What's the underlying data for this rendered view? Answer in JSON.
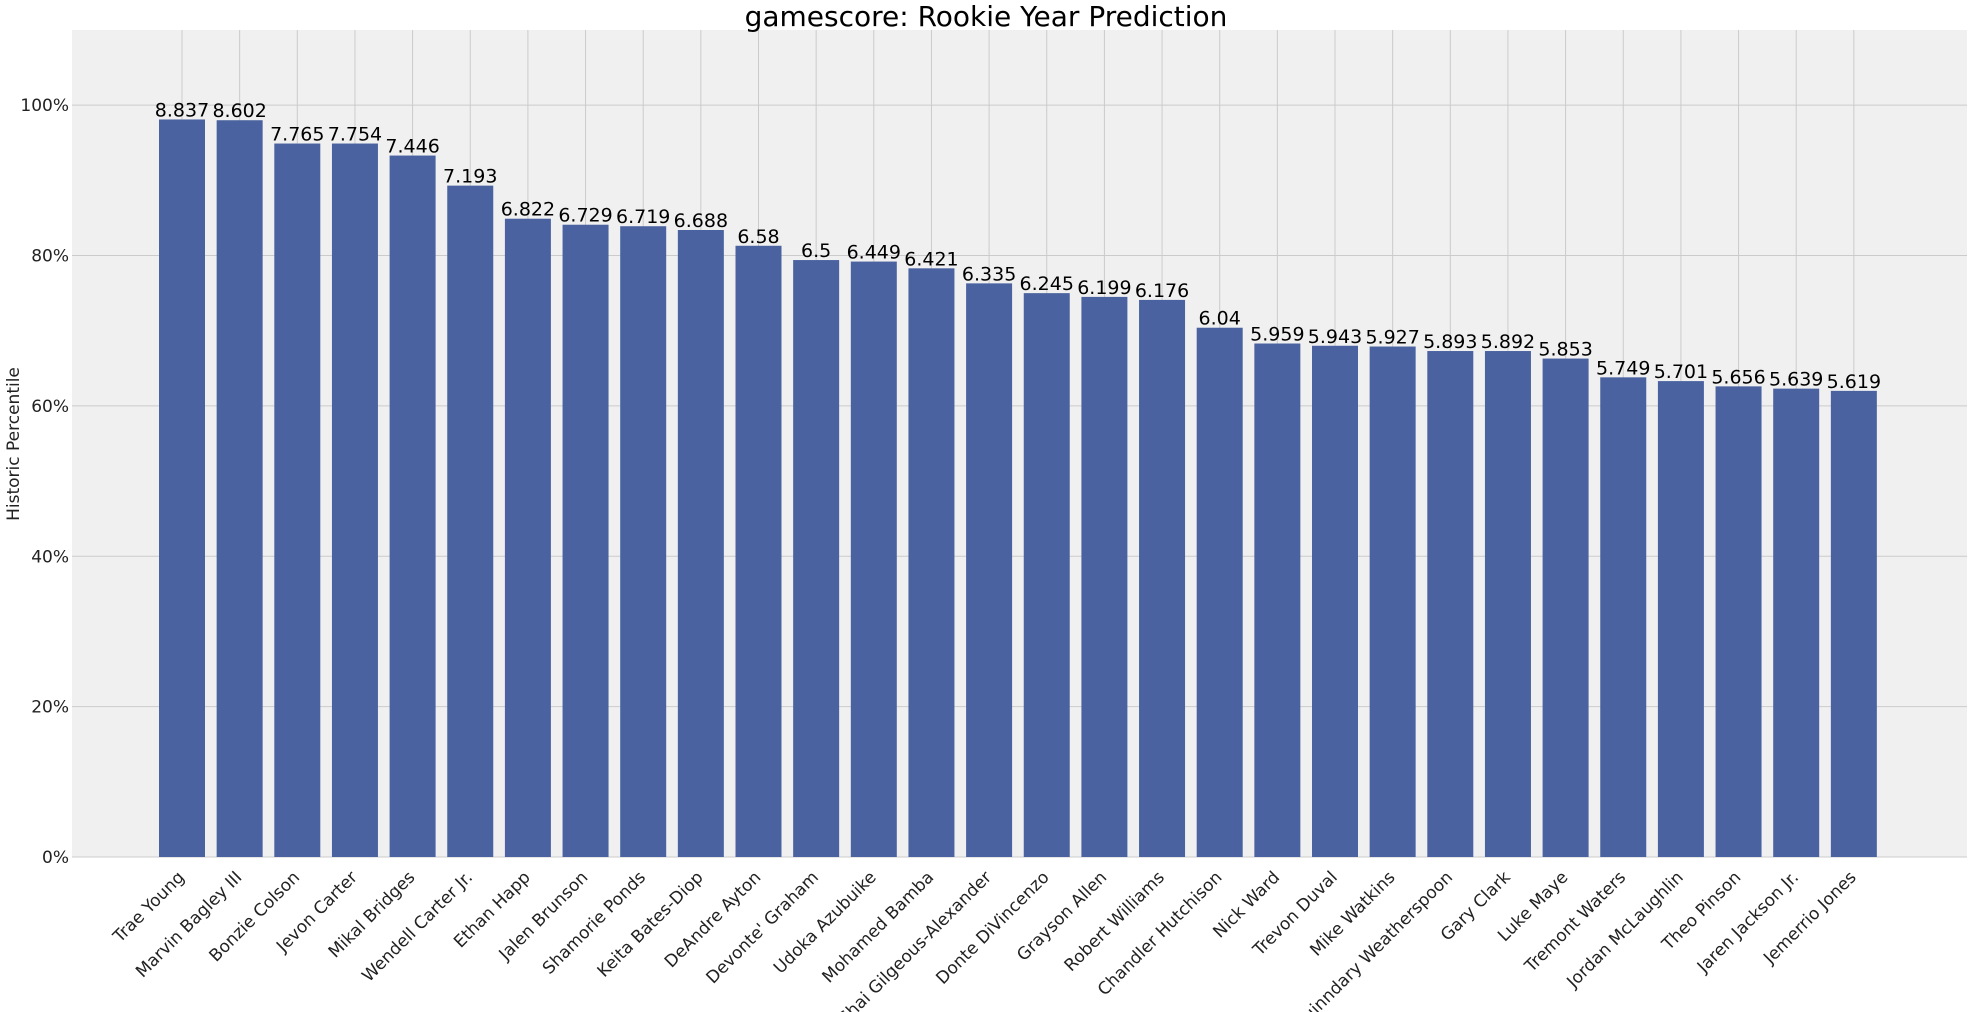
{
  "chart_data": {
    "type": "bar",
    "title": "gamescore: Rookie Year Prediction",
    "xlabel": "",
    "ylabel": "Historic Percentile",
    "ylim": [
      0,
      110
    ],
    "yticks": [
      0,
      20,
      40,
      60,
      80,
      100
    ],
    "ytick_labels": [
      "0%",
      "20%",
      "40%",
      "60%",
      "80%",
      "100%"
    ],
    "grid": true,
    "bar_color": "#4a63a0",
    "background_color": "#f0f0f0",
    "categories": [
      "Trae Young",
      "Marvin Bagley III",
      "Bonzie Colson",
      "Jevon Carter",
      "Mikal Bridges",
      "Wendell Carter Jr.",
      "Ethan Happ",
      "Jalen Brunson",
      "Shamorie Ponds",
      "Keita Bates-Diop",
      "DeAndre Ayton",
      "Devonte' Graham",
      "Udoka Azubuike",
      "Mohamed Bamba",
      "Shai Gilgeous-Alexander",
      "Donte DiVincenzo",
      "Grayson Allen",
      "Robert Williams",
      "Chandler Hutchison",
      "Nick Ward",
      "Trevon Duval",
      "Mike Watkins",
      "Quinndary Weatherspoon",
      "Gary Clark",
      "Luke Maye",
      "Tremont Waters",
      "Jordan McLaughlin",
      "Theo Pinson",
      "Jaren Jackson Jr.",
      "Jemerrio Jones"
    ],
    "values": [
      98.1,
      98.0,
      94.9,
      94.9,
      93.3,
      89.3,
      84.9,
      84.1,
      83.9,
      83.4,
      81.3,
      79.4,
      79.2,
      78.3,
      76.3,
      75.0,
      74.5,
      74.1,
      70.4,
      68.3,
      68.0,
      67.9,
      67.3,
      67.3,
      66.3,
      63.8,
      63.3,
      62.6,
      62.3,
      62.0
    ],
    "data_labels": [
      "8.837",
      "8.602",
      "7.765",
      "7.754",
      "7.446",
      "7.193",
      "6.822",
      "6.729",
      "6.719",
      "6.688",
      "6.58",
      "6.5",
      "6.449",
      "6.421",
      "6.335",
      "6.245",
      "6.199",
      "6.176",
      "6.04",
      "5.959",
      "5.943",
      "5.927",
      "5.893",
      "5.892",
      "5.853",
      "5.749",
      "5.701",
      "5.656",
      "5.639",
      "5.619"
    ]
  }
}
